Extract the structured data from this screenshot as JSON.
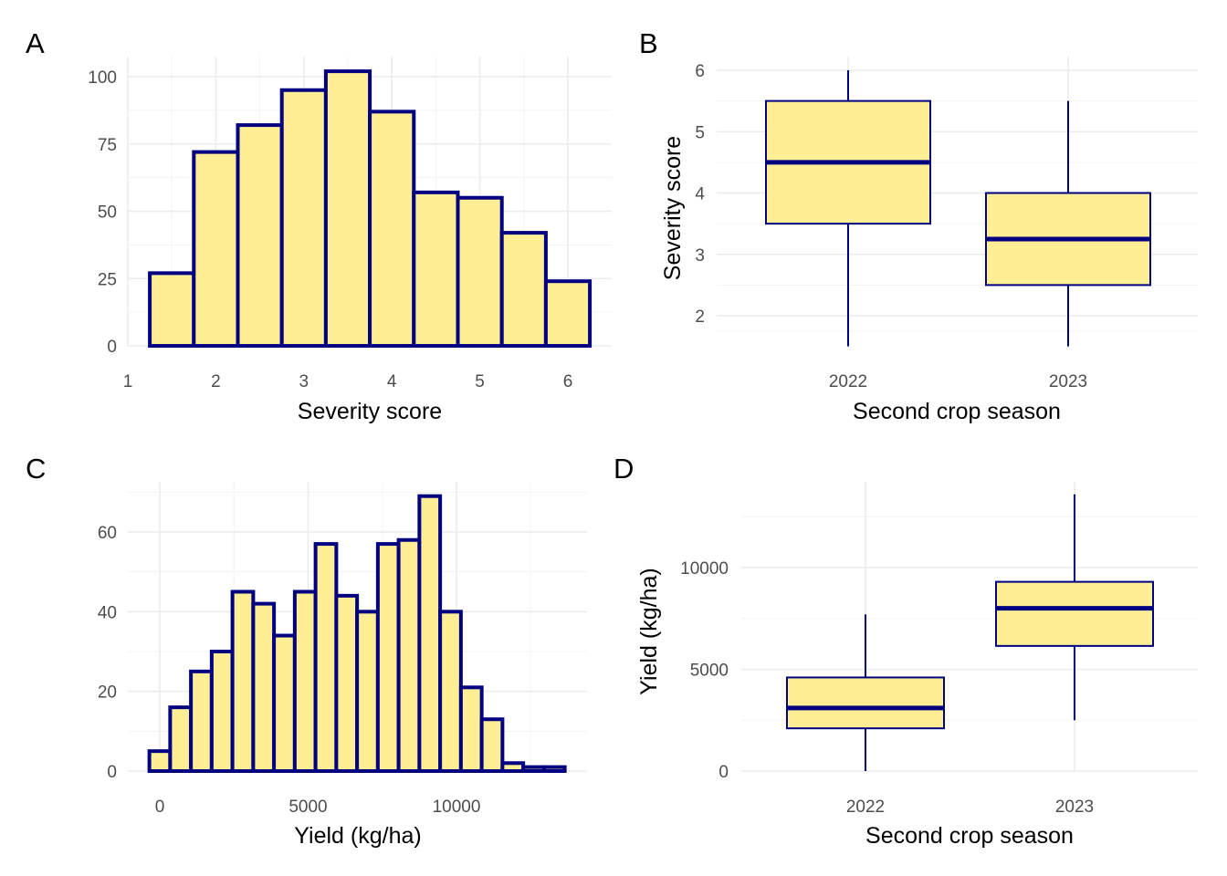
{
  "colors": {
    "fill": "#FFEE93",
    "stroke": "#000080",
    "grid_major": "#EBEBEB",
    "grid_minor": "#F3F3F3"
  },
  "chart_data": [
    {
      "panel": "A",
      "type": "bar",
      "subtype": "histogram",
      "xlabel": "Severity  score",
      "ylabel": "",
      "xlim": [
        1,
        6.5
      ],
      "ylim": [
        0,
        105
      ],
      "x_ticks": [
        "1",
        "2",
        "3",
        "4",
        "5",
        "6"
      ],
      "y_ticks": [
        "0",
        "25",
        "50",
        "75",
        "100"
      ],
      "bins": [
        {
          "x0": 1.25,
          "x1": 1.75,
          "count": 27
        },
        {
          "x0": 1.75,
          "x1": 2.25,
          "count": 72
        },
        {
          "x0": 2.25,
          "x1": 2.75,
          "count": 82
        },
        {
          "x0": 2.75,
          "x1": 3.25,
          "count": 95
        },
        {
          "x0": 3.25,
          "x1": 3.75,
          "count": 102
        },
        {
          "x0": 3.75,
          "x1": 4.25,
          "count": 87
        },
        {
          "x0": 4.25,
          "x1": 4.75,
          "count": 57
        },
        {
          "x0": 4.75,
          "x1": 5.25,
          "count": 55
        },
        {
          "x0": 5.25,
          "x1": 5.75,
          "count": 42
        },
        {
          "x0": 5.75,
          "x1": 6.25,
          "count": 24
        }
      ],
      "grid": true
    },
    {
      "panel": "B",
      "type": "box",
      "xlabel": "Second crop season",
      "ylabel": "Severity score",
      "ylim": [
        1.5,
        6.0
      ],
      "y_ticks": [
        "2",
        "3",
        "4",
        "5",
        "6"
      ],
      "categories": [
        "2022",
        "2023"
      ],
      "boxes": [
        {
          "category": "2022",
          "min": 1.5,
          "q1": 3.5,
          "median": 4.5,
          "q3": 5.5,
          "max": 6.0
        },
        {
          "category": "2023",
          "min": 1.5,
          "q1": 2.5,
          "median": 3.25,
          "q3": 4.0,
          "max": 5.5
        }
      ],
      "grid": true
    },
    {
      "panel": "C",
      "type": "bar",
      "subtype": "histogram",
      "xlabel": "Yield (kg/ha)",
      "ylabel": "",
      "xlim": [
        -1050,
        14500
      ],
      "ylim": [
        0,
        70
      ],
      "x_ticks": [
        "0",
        "5000",
        "10000"
      ],
      "y_ticks": [
        "0",
        "20",
        "40",
        "60"
      ],
      "bins": [
        {
          "x0": -350,
          "x1": 350,
          "count": 5
        },
        {
          "x0": 350,
          "x1": 1050,
          "count": 16
        },
        {
          "x0": 1050,
          "x1": 1750,
          "count": 25
        },
        {
          "x0": 1750,
          "x1": 2450,
          "count": 30
        },
        {
          "x0": 2450,
          "x1": 3150,
          "count": 45
        },
        {
          "x0": 3150,
          "x1": 3850,
          "count": 42
        },
        {
          "x0": 3850,
          "x1": 4550,
          "count": 34
        },
        {
          "x0": 4550,
          "x1": 5250,
          "count": 45
        },
        {
          "x0": 5250,
          "x1": 5950,
          "count": 57
        },
        {
          "x0": 5950,
          "x1": 6650,
          "count": 44
        },
        {
          "x0": 6650,
          "x1": 7350,
          "count": 40
        },
        {
          "x0": 7350,
          "x1": 8050,
          "count": 57
        },
        {
          "x0": 8050,
          "x1": 8750,
          "count": 58
        },
        {
          "x0": 8750,
          "x1": 9450,
          "count": 69
        },
        {
          "x0": 9450,
          "x1": 10150,
          "count": 40
        },
        {
          "x0": 10150,
          "x1": 10850,
          "count": 21
        },
        {
          "x0": 10850,
          "x1": 11550,
          "count": 13
        },
        {
          "x0": 11550,
          "x1": 12250,
          "count": 2
        },
        {
          "x0": 12250,
          "x1": 12950,
          "count": 1
        },
        {
          "x0": 12950,
          "x1": 13650,
          "count": 1
        }
      ],
      "grid": true
    },
    {
      "panel": "D",
      "type": "box",
      "xlabel": "Second crop season",
      "ylabel": "Yield (kg/ha)",
      "ylim": [
        0,
        13500
      ],
      "y_ticks": [
        "0",
        "5000",
        "10000"
      ],
      "categories": [
        "2022",
        "2023"
      ],
      "boxes": [
        {
          "category": "2022",
          "min": 0,
          "q1": 2100,
          "median": 3100,
          "q3": 4600,
          "max": 7700
        },
        {
          "category": "2023",
          "min": 2500,
          "q1": 6150,
          "median": 8000,
          "q3": 9300,
          "max": 13600
        }
      ],
      "grid": true
    }
  ]
}
